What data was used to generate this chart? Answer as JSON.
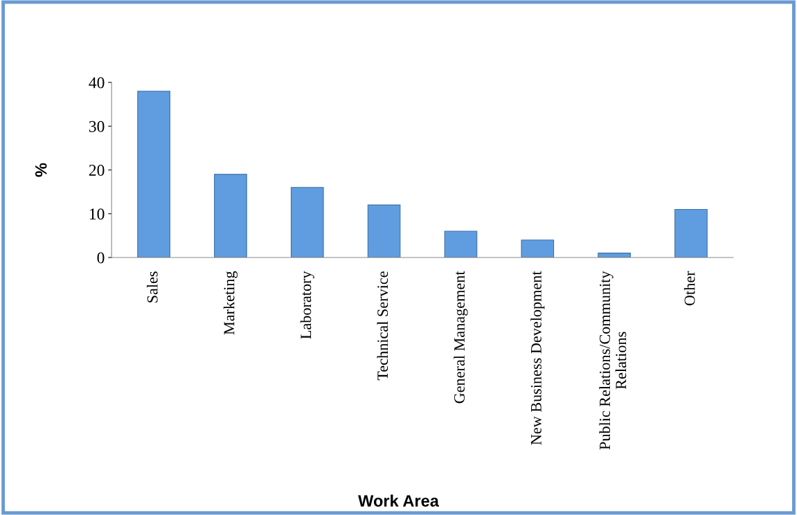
{
  "chart_data": {
    "type": "bar",
    "xlabel": "Work Area",
    "ylabel": "%",
    "categories": [
      "Sales",
      "Marketing",
      "Laboratory",
      "Technical Service",
      "General Management",
      "New Business Development",
      "Public Relations/Community\nRelations",
      "Other"
    ],
    "values": [
      38,
      19,
      16,
      12,
      6,
      4,
      1,
      11
    ],
    "color": "#5f9de0",
    "ylim": [
      0,
      40
    ],
    "yticks": [
      0,
      10,
      20,
      30,
      40
    ],
    "grid": false,
    "legend": false
  }
}
